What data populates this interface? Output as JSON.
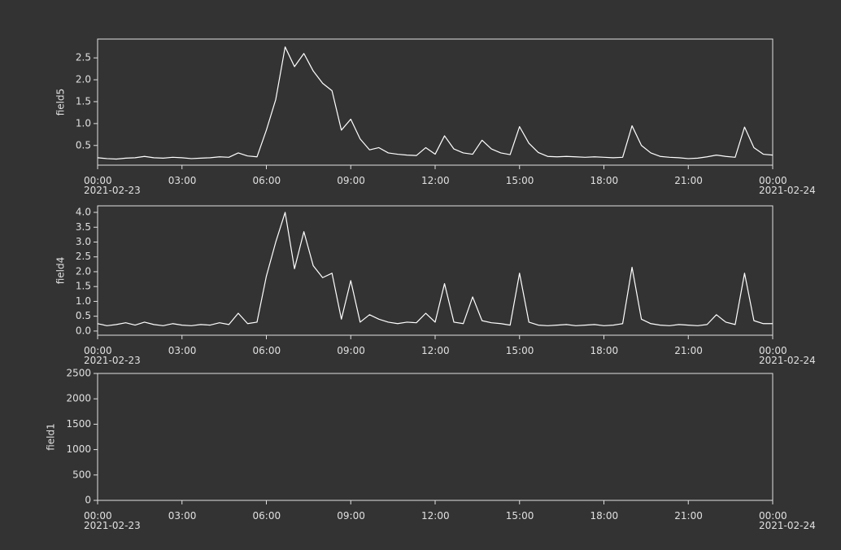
{
  "chart_data": [
    {
      "type": "line",
      "ylabel": "field5",
      "color": "#ffffff",
      "x": [
        "2021-02-23T00:00",
        "2021-02-23T00:20",
        "2021-02-23T00:40",
        "2021-02-23T01:00",
        "2021-02-23T01:20",
        "2021-02-23T01:40",
        "2021-02-23T02:00",
        "2021-02-23T02:20",
        "2021-02-23T02:40",
        "2021-02-23T03:00",
        "2021-02-23T03:20",
        "2021-02-23T03:40",
        "2021-02-23T04:00",
        "2021-02-23T04:20",
        "2021-02-23T04:40",
        "2021-02-23T05:00",
        "2021-02-23T05:20",
        "2021-02-23T05:40",
        "2021-02-23T06:00",
        "2021-02-23T06:20",
        "2021-02-23T06:40",
        "2021-02-23T07:00",
        "2021-02-23T07:20",
        "2021-02-23T07:40",
        "2021-02-23T08:00",
        "2021-02-23T08:20",
        "2021-02-23T08:40",
        "2021-02-23T09:00",
        "2021-02-23T09:20",
        "2021-02-23T09:40",
        "2021-02-23T10:00",
        "2021-02-23T10:20",
        "2021-02-23T10:40",
        "2021-02-23T11:00",
        "2021-02-23T11:20",
        "2021-02-23T11:40",
        "2021-02-23T12:00",
        "2021-02-23T12:20",
        "2021-02-23T12:40",
        "2021-02-23T13:00",
        "2021-02-23T13:20",
        "2021-02-23T13:40",
        "2021-02-23T14:00",
        "2021-02-23T14:20",
        "2021-02-23T14:40",
        "2021-02-23T15:00",
        "2021-02-23T15:20",
        "2021-02-23T15:40",
        "2021-02-23T16:00",
        "2021-02-23T16:20",
        "2021-02-23T16:40",
        "2021-02-23T17:00",
        "2021-02-23T17:20",
        "2021-02-23T17:40",
        "2021-02-23T18:00",
        "2021-02-23T18:20",
        "2021-02-23T18:40",
        "2021-02-23T19:00",
        "2021-02-23T19:20",
        "2021-02-23T19:40",
        "2021-02-23T20:00",
        "2021-02-23T20:20",
        "2021-02-23T20:40",
        "2021-02-23T21:00",
        "2021-02-23T21:20",
        "2021-02-23T21:40",
        "2021-02-23T22:00",
        "2021-02-23T22:20",
        "2021-02-23T22:40",
        "2021-02-23T23:00",
        "2021-02-23T23:20",
        "2021-02-23T23:40",
        "2021-02-24T00:00"
      ],
      "values": [
        0.22,
        0.2,
        0.19,
        0.21,
        0.22,
        0.25,
        0.22,
        0.21,
        0.23,
        0.22,
        0.2,
        0.21,
        0.22,
        0.24,
        0.23,
        0.33,
        0.26,
        0.24,
        0.85,
        1.55,
        2.75,
        2.3,
        2.6,
        2.2,
        1.92,
        1.75,
        0.85,
        1.1,
        0.65,
        0.4,
        0.45,
        0.33,
        0.3,
        0.28,
        0.27,
        0.45,
        0.3,
        0.72,
        0.42,
        0.33,
        0.3,
        0.62,
        0.42,
        0.33,
        0.29,
        0.93,
        0.55,
        0.34,
        0.25,
        0.24,
        0.25,
        0.24,
        0.23,
        0.24,
        0.23,
        0.22,
        0.23,
        0.95,
        0.5,
        0.33,
        0.25,
        0.23,
        0.22,
        0.2,
        0.21,
        0.24,
        0.28,
        0.25,
        0.23,
        0.92,
        0.45,
        0.3,
        0.28
      ],
      "xlim": [
        "2021-02-23T00:00",
        "2021-02-24T00:00"
      ],
      "xticks": [
        {
          "value": "2021-02-23T00:00",
          "label": "00:00\n2021-02-23"
        },
        {
          "value": "2021-02-23T03:00",
          "label": "03:00"
        },
        {
          "value": "2021-02-23T06:00",
          "label": "06:00"
        },
        {
          "value": "2021-02-23T09:00",
          "label": "09:00"
        },
        {
          "value": "2021-02-23T12:00",
          "label": "12:00"
        },
        {
          "value": "2021-02-23T15:00",
          "label": "15:00"
        },
        {
          "value": "2021-02-23T18:00",
          "label": "18:00"
        },
        {
          "value": "2021-02-23T21:00",
          "label": "21:00"
        },
        {
          "value": "2021-02-24T00:00",
          "label": "00:00\n2021-02-24"
        }
      ],
      "ylim": [
        0.05,
        2.93
      ],
      "yticks": [
        0.5,
        {
          "value": 1,
          "label": "1.0"
        },
        1.5,
        {
          "value": 2,
          "label": "2.0"
        },
        2.5
      ]
    },
    {
      "type": "line",
      "ylabel": "field4",
      "color": "#ffffff",
      "x": [
        "2021-02-23T00:00",
        "2021-02-23T00:20",
        "2021-02-23T00:40",
        "2021-02-23T01:00",
        "2021-02-23T01:20",
        "2021-02-23T01:40",
        "2021-02-23T02:00",
        "2021-02-23T02:20",
        "2021-02-23T02:40",
        "2021-02-23T03:00",
        "2021-02-23T03:20",
        "2021-02-23T03:40",
        "2021-02-23T04:00",
        "2021-02-23T04:20",
        "2021-02-23T04:40",
        "2021-02-23T05:00",
        "2021-02-23T05:20",
        "2021-02-23T05:40",
        "2021-02-23T06:00",
        "2021-02-23T06:20",
        "2021-02-23T06:40",
        "2021-02-23T07:00",
        "2021-02-23T07:20",
        "2021-02-23T07:40",
        "2021-02-23T08:00",
        "2021-02-23T08:20",
        "2021-02-23T08:40",
        "2021-02-23T09:00",
        "2021-02-23T09:20",
        "2021-02-23T09:40",
        "2021-02-23T10:00",
        "2021-02-23T10:20",
        "2021-02-23T10:40",
        "2021-02-23T11:00",
        "2021-02-23T11:20",
        "2021-02-23T11:40",
        "2021-02-23T12:00",
        "2021-02-23T12:20",
        "2021-02-23T12:40",
        "2021-02-23T13:00",
        "2021-02-23T13:20",
        "2021-02-23T13:40",
        "2021-02-23T14:00",
        "2021-02-23T14:20",
        "2021-02-23T14:40",
        "2021-02-23T15:00",
        "2021-02-23T15:20",
        "2021-02-23T15:40",
        "2021-02-23T16:00",
        "2021-02-23T16:20",
        "2021-02-23T16:40",
        "2021-02-23T17:00",
        "2021-02-23T17:20",
        "2021-02-23T17:40",
        "2021-02-23T18:00",
        "2021-02-23T18:20",
        "2021-02-23T18:40",
        "2021-02-23T19:00",
        "2021-02-23T19:20",
        "2021-02-23T19:40",
        "2021-02-23T20:00",
        "2021-02-23T20:20",
        "2021-02-23T20:40",
        "2021-02-23T21:00",
        "2021-02-23T21:20",
        "2021-02-23T21:40",
        "2021-02-23T22:00",
        "2021-02-23T22:20",
        "2021-02-23T22:40",
        "2021-02-23T23:00",
        "2021-02-23T23:20",
        "2021-02-23T23:40",
        "2021-02-24T00:00"
      ],
      "values": [
        0.25,
        0.18,
        0.22,
        0.28,
        0.2,
        0.3,
        0.22,
        0.18,
        0.25,
        0.2,
        0.18,
        0.22,
        0.2,
        0.28,
        0.22,
        0.6,
        0.25,
        0.3,
        1.85,
        3.0,
        4.0,
        2.1,
        3.35,
        2.2,
        1.8,
        1.95,
        0.4,
        1.7,
        0.3,
        0.55,
        0.4,
        0.3,
        0.25,
        0.3,
        0.28,
        0.6,
        0.3,
        1.6,
        0.3,
        0.25,
        1.15,
        0.35,
        0.28,
        0.25,
        0.2,
        1.95,
        0.3,
        0.2,
        0.18,
        0.2,
        0.22,
        0.18,
        0.2,
        0.22,
        0.18,
        0.2,
        0.25,
        2.15,
        0.4,
        0.25,
        0.2,
        0.18,
        0.22,
        0.2,
        0.18,
        0.22,
        0.55,
        0.3,
        0.22,
        1.95,
        0.35,
        0.25,
        0.25
      ],
      "xlim": [
        "2021-02-23T00:00",
        "2021-02-24T00:00"
      ],
      "xticks": [
        {
          "value": "2021-02-23T00:00",
          "label": "00:00\n2021-02-23"
        },
        {
          "value": "2021-02-23T03:00",
          "label": "03:00"
        },
        {
          "value": "2021-02-23T06:00",
          "label": "06:00"
        },
        {
          "value": "2021-02-23T09:00",
          "label": "09:00"
        },
        {
          "value": "2021-02-23T12:00",
          "label": "12:00"
        },
        {
          "value": "2021-02-23T15:00",
          "label": "15:00"
        },
        {
          "value": "2021-02-23T18:00",
          "label": "18:00"
        },
        {
          "value": "2021-02-23T21:00",
          "label": "21:00"
        },
        {
          "value": "2021-02-24T00:00",
          "label": "00:00\n2021-02-24"
        }
      ],
      "ylim": [
        -0.14,
        4.22
      ],
      "yticks": [
        {
          "value": 0,
          "label": "0.0"
        },
        0.5,
        {
          "value": 1,
          "label": "1.0"
        },
        1.5,
        {
          "value": 2,
          "label": "2.0"
        },
        2.5,
        {
          "value": 3,
          "label": "3.0"
        },
        3.5,
        {
          "value": 4,
          "label": "4.0"
        }
      ]
    },
    {
      "type": "line",
      "ylabel": "field1",
      "color": "#ffffff",
      "x": [],
      "values": [],
      "xlim": [
        "2021-02-23T00:00",
        "2021-02-24T00:00"
      ],
      "xticks": [
        {
          "value": "2021-02-23T00:00",
          "label": "00:00\n2021-02-23"
        },
        {
          "value": "2021-02-23T03:00",
          "label": "03:00"
        },
        {
          "value": "2021-02-23T06:00",
          "label": "06:00"
        },
        {
          "value": "2021-02-23T09:00",
          "label": "09:00"
        },
        {
          "value": "2021-02-23T12:00",
          "label": "12:00"
        },
        {
          "value": "2021-02-23T15:00",
          "label": "15:00"
        },
        {
          "value": "2021-02-23T18:00",
          "label": "18:00"
        },
        {
          "value": "2021-02-23T21:00",
          "label": "21:00"
        },
        {
          "value": "2021-02-24T00:00",
          "label": "00:00\n2021-02-24"
        }
      ],
      "ylim": [
        0,
        2500
      ],
      "yticks": [
        0,
        500,
        1000,
        1500,
        2000,
        2500
      ]
    }
  ]
}
